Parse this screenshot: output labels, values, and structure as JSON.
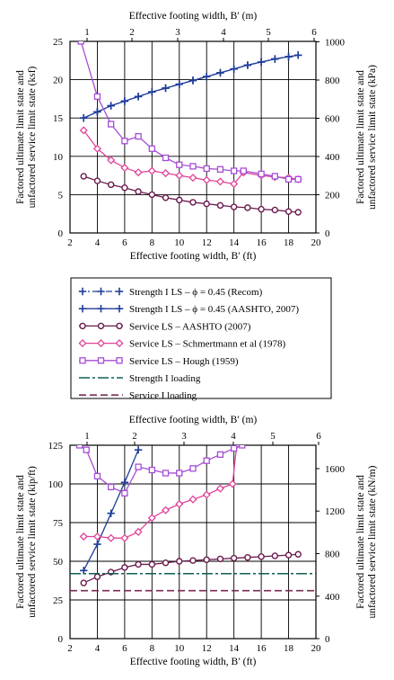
{
  "chart_data": [
    {
      "type": "line",
      "xlabel": "Effective footing width, B′ (ft)",
      "x2label": "Effective footing width, B′ (m)",
      "ylabel": [
        "Factored ultimate limit state and",
        "unfactored service limit state (ksf)"
      ],
      "y2label": [
        "Factored ultimate limit state and",
        "unfactored service limit state (kPa)"
      ],
      "xlim": [
        2,
        20
      ],
      "ylim": [
        0,
        25
      ],
      "x2lim": [
        0.6096,
        6.096
      ],
      "y2lim": [
        0,
        1197
      ],
      "xticks": [
        "2",
        "4",
        "6",
        "8",
        "10",
        "12",
        "14",
        "16",
        "18",
        "20"
      ],
      "yticks": [
        "0",
        "5",
        "10",
        "15",
        "20",
        "25"
      ],
      "x2ticks": [
        "1",
        "2",
        "3",
        "4",
        "5",
        "6"
      ],
      "y2ticks": [
        "0",
        "200",
        "400",
        "600",
        "800",
        "1000"
      ],
      "grid": "vertical and horizontal major lines",
      "series": [
        {
          "name": "Strength I LS – ϕ = 0.45 (Recom)",
          "color": "#1f3d99",
          "marker": "plus",
          "dash": "7,3,2,3",
          "x": [
            3,
            4,
            5,
            6,
            7,
            8,
            9,
            10,
            11,
            12,
            13,
            14,
            15,
            16,
            17,
            18,
            18.7
          ],
          "y": [
            15.0,
            15.8,
            16.6,
            17.2,
            17.8,
            18.4,
            18.9,
            19.4,
            19.9,
            20.4,
            20.9,
            21.4,
            21.9,
            22.3,
            22.7,
            23.0,
            23.2
          ]
        },
        {
          "name": "Strength I LS – ϕ = 0.45 (AASHTO, 2007)",
          "color": "#1f3d99",
          "marker": "plus",
          "dash": "",
          "x": [
            3,
            4,
            5,
            6,
            7,
            8,
            9,
            10,
            11,
            12,
            13,
            14,
            15,
            16,
            17,
            18,
            18.7
          ],
          "y": [
            15.0,
            15.8,
            16.6,
            17.2,
            17.8,
            18.4,
            18.9,
            19.4,
            19.9,
            20.4,
            20.9,
            21.4,
            21.9,
            22.3,
            22.7,
            23.0,
            23.2
          ]
        },
        {
          "name": "Service LS – AASHTO (2007)",
          "color": "#6b1a4d",
          "marker": "circle",
          "dash": "",
          "x": [
            3,
            4,
            5,
            6,
            7,
            8,
            9,
            10,
            11,
            12,
            13,
            14,
            15,
            16,
            17,
            18,
            18.7
          ],
          "y": [
            7.4,
            6.8,
            6.3,
            5.9,
            5.4,
            5.0,
            4.6,
            4.3,
            4.0,
            3.8,
            3.6,
            3.4,
            3.3,
            3.1,
            3.0,
            2.8,
            2.7
          ]
        },
        {
          "name": "Service LS – Schmertmann et al (1978)",
          "color": "#e0449a",
          "marker": "diamond",
          "dash": "",
          "x": [
            3,
            4,
            5,
            6,
            7,
            8,
            9,
            10,
            11,
            12,
            13,
            14,
            14.7,
            16,
            17,
            18,
            18.7
          ],
          "y": [
            13.4,
            11.0,
            9.5,
            8.5,
            7.9,
            8.1,
            7.8,
            7.5,
            7.2,
            6.9,
            6.7,
            6.4,
            7.9,
            7.5,
            7.3,
            7.2,
            7.0
          ]
        },
        {
          "name": "Service LS – Hough (1959)",
          "color": "#a64dd6",
          "marker": "square",
          "dash": "",
          "x": [
            2.8,
            4,
            5,
            6,
            7,
            8,
            9,
            10,
            11,
            12,
            13,
            14,
            14.7,
            16,
            17,
            18,
            18.7
          ],
          "y": [
            25,
            17.8,
            14.2,
            12.0,
            12.6,
            11.0,
            9.8,
            8.9,
            8.7,
            8.4,
            8.3,
            8.1,
            8.1,
            7.7,
            7.4,
            7.0,
            7.0
          ]
        }
      ]
    },
    {
      "type": "line",
      "xlabel": "Effective footing width, B′ (ft)",
      "x2label": "Effective footing width, B′ (m)",
      "ylabel": [
        "Factored ultimate limit state and",
        "unfactored service limit state (kip/ft)"
      ],
      "y2label": [
        "Factored ultimate limit state and",
        "unfactored service limit state (kN/m)"
      ],
      "xlim": [
        2,
        20
      ],
      "ylim": [
        0,
        125
      ],
      "x2lim": [
        0.6096,
        6.096
      ],
      "y2lim": [
        0,
        1824
      ],
      "xticks": [
        "2",
        "4",
        "6",
        "8",
        "10",
        "12",
        "14",
        "16",
        "18",
        "20"
      ],
      "yticks": [
        "0",
        "25",
        "50",
        "75",
        "100",
        "125"
      ],
      "x2ticks": [
        "1",
        "2",
        "3",
        "4",
        "5",
        "6"
      ],
      "y2ticks": [
        "0",
        "400",
        "800",
        "1200",
        "1600"
      ],
      "grid": "vertical and horizontal major lines",
      "series": [
        {
          "name": "Strength I LS – ϕ = 0.45 (AASHTO, 2007)",
          "color": "#1f3d99",
          "marker": "plus",
          "dash": "",
          "x": [
            3,
            4,
            5,
            6,
            7
          ],
          "y": [
            44,
            61,
            81,
            101,
            122
          ]
        },
        {
          "name": "Service LS – AASHTO (2007)",
          "color": "#6b1a4d",
          "marker": "circle",
          "dash": "",
          "x": [
            3,
            4,
            5,
            6,
            7,
            8,
            9,
            10,
            11,
            12,
            13,
            14,
            15,
            16,
            17,
            18,
            18.7
          ],
          "y": [
            36,
            40,
            43,
            46,
            48,
            48,
            49,
            50,
            50.5,
            51,
            51.5,
            52,
            52.5,
            53,
            53.5,
            54,
            54.5
          ]
        },
        {
          "name": "Service LS – Schmertmann et al (1978)",
          "color": "#e0449a",
          "marker": "diamond",
          "dash": "",
          "x": [
            3,
            4,
            5,
            6,
            7,
            8,
            9,
            10,
            11,
            12,
            13,
            13.9,
            14.2
          ],
          "y": [
            66,
            66,
            65,
            65,
            69,
            78,
            83,
            87,
            90,
            93,
            97,
            100,
            125
          ]
        },
        {
          "name": "Service LS – Hough (1959)",
          "color": "#a64dd6",
          "marker": "square",
          "dash": "",
          "x": [
            2.7,
            3.2,
            4,
            5,
            6,
            7,
            8,
            9,
            10,
            11,
            12,
            13,
            14,
            14.6
          ],
          "y": [
            125,
            122,
            105,
            98,
            94,
            111,
            109,
            107,
            107,
            110,
            115,
            119,
            123,
            125
          ]
        },
        {
          "name": "Strength I loading",
          "color": "#0f5e56",
          "marker": "none",
          "dash": "12,3,3,3",
          "x": [
            2,
            20
          ],
          "y": [
            42,
            42
          ]
        },
        {
          "name": "Service I loading",
          "color": "#7a2e55",
          "marker": "none",
          "dash": "8,4",
          "x": [
            2,
            20
          ],
          "y": [
            31,
            31
          ]
        }
      ]
    }
  ],
  "legend": [
    {
      "label": "Strength I LS – ϕ = 0.45 (Recom)",
      "color": "#1f3d99",
      "marker": "plus",
      "dash": "7,3,2,3"
    },
    {
      "label": "Strength I LS – ϕ = 0.45 (AASHTO, 2007)",
      "color": "#1f3d99",
      "marker": "plus",
      "dash": ""
    },
    {
      "label": "Service LS – AASHTO (2007)",
      "color": "#6b1a4d",
      "marker": "circle",
      "dash": ""
    },
    {
      "label": "Service LS – Schmertmann et al (1978)",
      "color": "#e0449a",
      "marker": "diamond",
      "dash": ""
    },
    {
      "label": "Service LS – Hough (1959)",
      "color": "#a64dd6",
      "marker": "square",
      "dash": ""
    },
    {
      "label": "Strength I loading",
      "color": "#0f5e56",
      "marker": "none",
      "dash": "12,3,3,3"
    },
    {
      "label": "Service I loading",
      "color": "#7a2e55",
      "marker": "none",
      "dash": "8,4"
    }
  ]
}
